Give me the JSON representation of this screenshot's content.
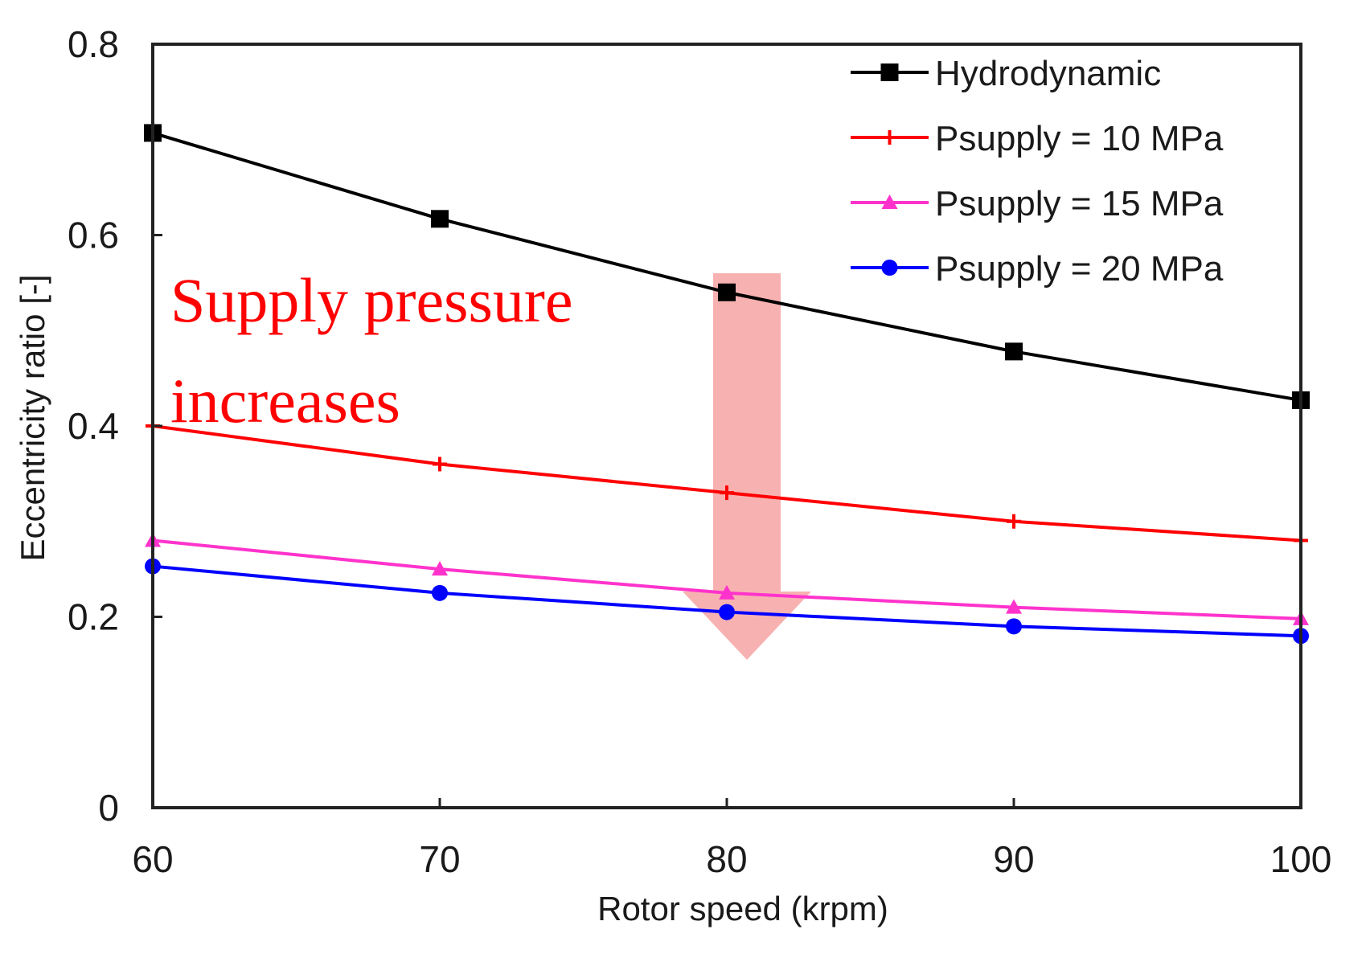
{
  "chart_data": {
    "type": "line",
    "title": "",
    "xlabel": "Rotor speed (krpm)",
    "ylabel": "Eccentricity ratio [-]",
    "x": [
      60,
      70,
      80,
      90,
      100
    ],
    "xlim": [
      60,
      100
    ],
    "ylim": [
      0,
      0.8
    ],
    "xticks": [
      "60",
      "70",
      "80",
      "90",
      "100"
    ],
    "yticks": [
      "0",
      "0.2",
      "0.4",
      "0.6",
      "0.8"
    ],
    "xtick_values": [
      60,
      70,
      80,
      90,
      100
    ],
    "ytick_values": [
      0,
      0.2,
      0.4,
      0.6,
      0.8
    ],
    "grid": false,
    "legend_position": "top-right",
    "series": [
      {
        "name": "Hydrodynamic",
        "color": "#000000",
        "marker": "square",
        "values": [
          0.707,
          0.617,
          0.54,
          0.478,
          0.427
        ]
      },
      {
        "name": "Psupply = 10 MPa",
        "color": "#ff0000",
        "marker": "plus",
        "values": [
          0.4,
          0.36,
          0.33,
          0.3,
          0.28
        ]
      },
      {
        "name": "Psupply = 15 MPa",
        "color": "#ff33cc",
        "marker": "triangle",
        "values": [
          0.28,
          0.25,
          0.225,
          0.21,
          0.198
        ]
      },
      {
        "name": "Psupply = 20 MPa",
        "color": "#0000ff",
        "marker": "circle",
        "values": [
          0.253,
          0.225,
          0.205,
          0.19,
          0.18
        ]
      }
    ],
    "annotation": {
      "lines": [
        "Supply pressure",
        "increases"
      ],
      "text_color": "#ff0000",
      "arrow_color": "#f7a8a8",
      "arrow_from_y": 0.56,
      "arrow_to_y": 0.155,
      "arrow_x": 80.7
    }
  }
}
